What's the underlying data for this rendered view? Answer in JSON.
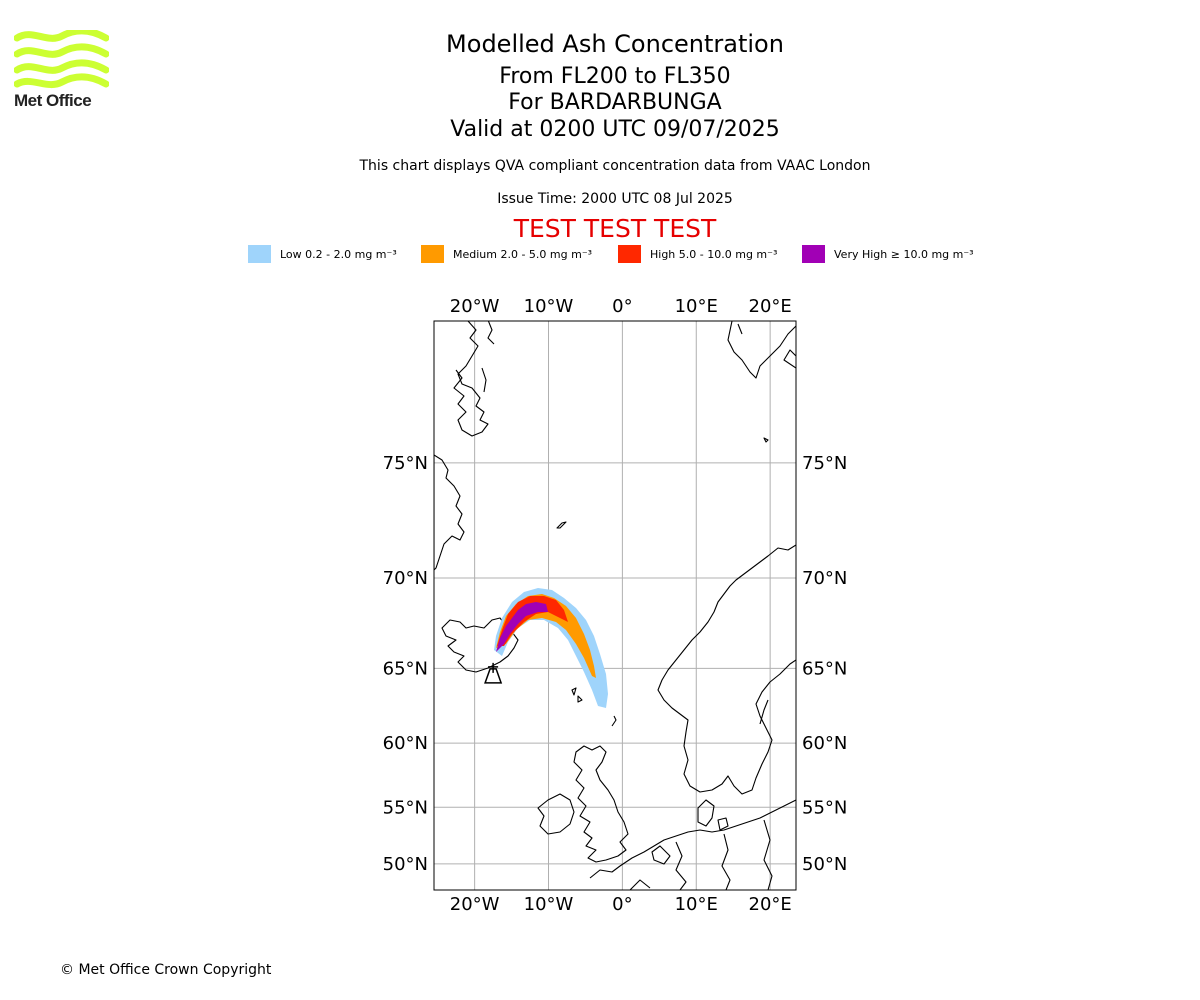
{
  "header": {
    "title": "Modelled Ash Concentration",
    "flight_levels": "From FL200 to FL350",
    "volcano": "For BARDARBUNGA",
    "valid": "Valid at 0200 UTC 09/07/2025",
    "note": "This chart displays QVA compliant concentration data from VAAC London",
    "issue_time": "Issue Time: 2000 UTC 08 Jul 2025",
    "test_banner": "TEST TEST TEST"
  },
  "logo": {
    "text": "Met Office",
    "color": "#ccff33"
  },
  "legend": [
    {
      "label": "Low 0.2 - 2.0 mg m⁻³",
      "color": "#9fd4fb"
    },
    {
      "label": "Medium 2.0 - 5.0 mg m⁻³",
      "color": "#ff9a00"
    },
    {
      "label": "High 5.0 - 10.0 mg m⁻³",
      "color": "#ff2800"
    },
    {
      "label": "Very High ≥ 10.0 mg m⁻³",
      "color": "#a100b5"
    }
  ],
  "map": {
    "projection": "Mercator",
    "lon_range": [
      -25.5,
      23.5
    ],
    "lat_range": [
      47.5,
      79.5
    ],
    "lon_ticks": [
      {
        "value": -20,
        "label": "20°W"
      },
      {
        "value": -10,
        "label": "10°W"
      },
      {
        "value": 0,
        "label": "0°"
      },
      {
        "value": 10,
        "label": "10°E"
      },
      {
        "value": 20,
        "label": "20°E"
      }
    ],
    "lat_ticks": [
      {
        "value": 75,
        "label": "75°N"
      },
      {
        "value": 70,
        "label": "70°N"
      },
      {
        "value": 65,
        "label": "65°N"
      },
      {
        "value": 60,
        "label": "60°N"
      },
      {
        "value": 55,
        "label": "55°N"
      },
      {
        "value": 50,
        "label": "50°N"
      }
    ],
    "gridlines": true,
    "volcano_location": {
      "lon": -17.5,
      "lat": 64.6
    }
  },
  "footer": {
    "copyright": "© Met Office Crown Copyright"
  }
}
